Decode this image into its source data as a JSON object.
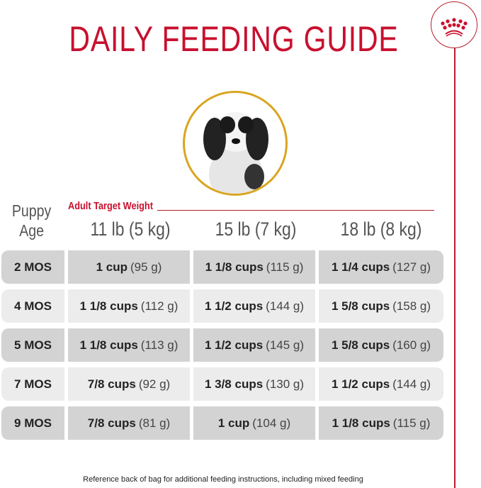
{
  "title": "DAILY FEEDING GUIDE",
  "logo": "royal-canin-crown",
  "colors": {
    "accent": "#c8102e",
    "ring": "#d9a520",
    "row_dark": "#d3d3d3",
    "row_light": "#ececec"
  },
  "header": {
    "age_label_1": "Puppy",
    "age_label_2": "Age",
    "weight_label": "Adult Target Weight",
    "weights": [
      "11 lb (5 kg)",
      "15 lb (7 kg)",
      "18 lb (8 kg)"
    ]
  },
  "rows": [
    {
      "age": "2 MOS",
      "cells": [
        {
          "cups": "1 cup",
          "grams": "(95 g)"
        },
        {
          "cups": "1 1/8 cups",
          "grams": "(115 g)"
        },
        {
          "cups": "1 1/4 cups",
          "grams": "(127 g)"
        }
      ]
    },
    {
      "age": "4 MOS",
      "cells": [
        {
          "cups": "1 1/8 cups",
          "grams": "(112 g)"
        },
        {
          "cups": "1 1/2 cups",
          "grams": "(144 g)"
        },
        {
          "cups": "1 5/8 cups",
          "grams": "(158 g)"
        }
      ]
    },
    {
      "age": "5 MOS",
      "cells": [
        {
          "cups": "1 1/8 cups",
          "grams": "(113 g)"
        },
        {
          "cups": "1 1/2 cups",
          "grams": "(145 g)"
        },
        {
          "cups": "1 5/8 cups",
          "grams": "(160 g)"
        }
      ]
    },
    {
      "age": "7 MOS",
      "cells": [
        {
          "cups": "7/8 cups",
          "grams": "(92 g)"
        },
        {
          "cups": "1 3/8 cups",
          "grams": "(130 g)"
        },
        {
          "cups": "1 1/2 cups",
          "grams": "(144 g)"
        }
      ]
    },
    {
      "age": "9 MOS",
      "cells": [
        {
          "cups": "7/8 cups",
          "grams": "(81 g)"
        },
        {
          "cups": "1 cup",
          "grams": "(104 g)"
        },
        {
          "cups": "1 1/8 cups",
          "grams": "(115 g)"
        }
      ]
    }
  ],
  "footer": "Reference back of bag for additional feeding instructions, including mixed feeding"
}
